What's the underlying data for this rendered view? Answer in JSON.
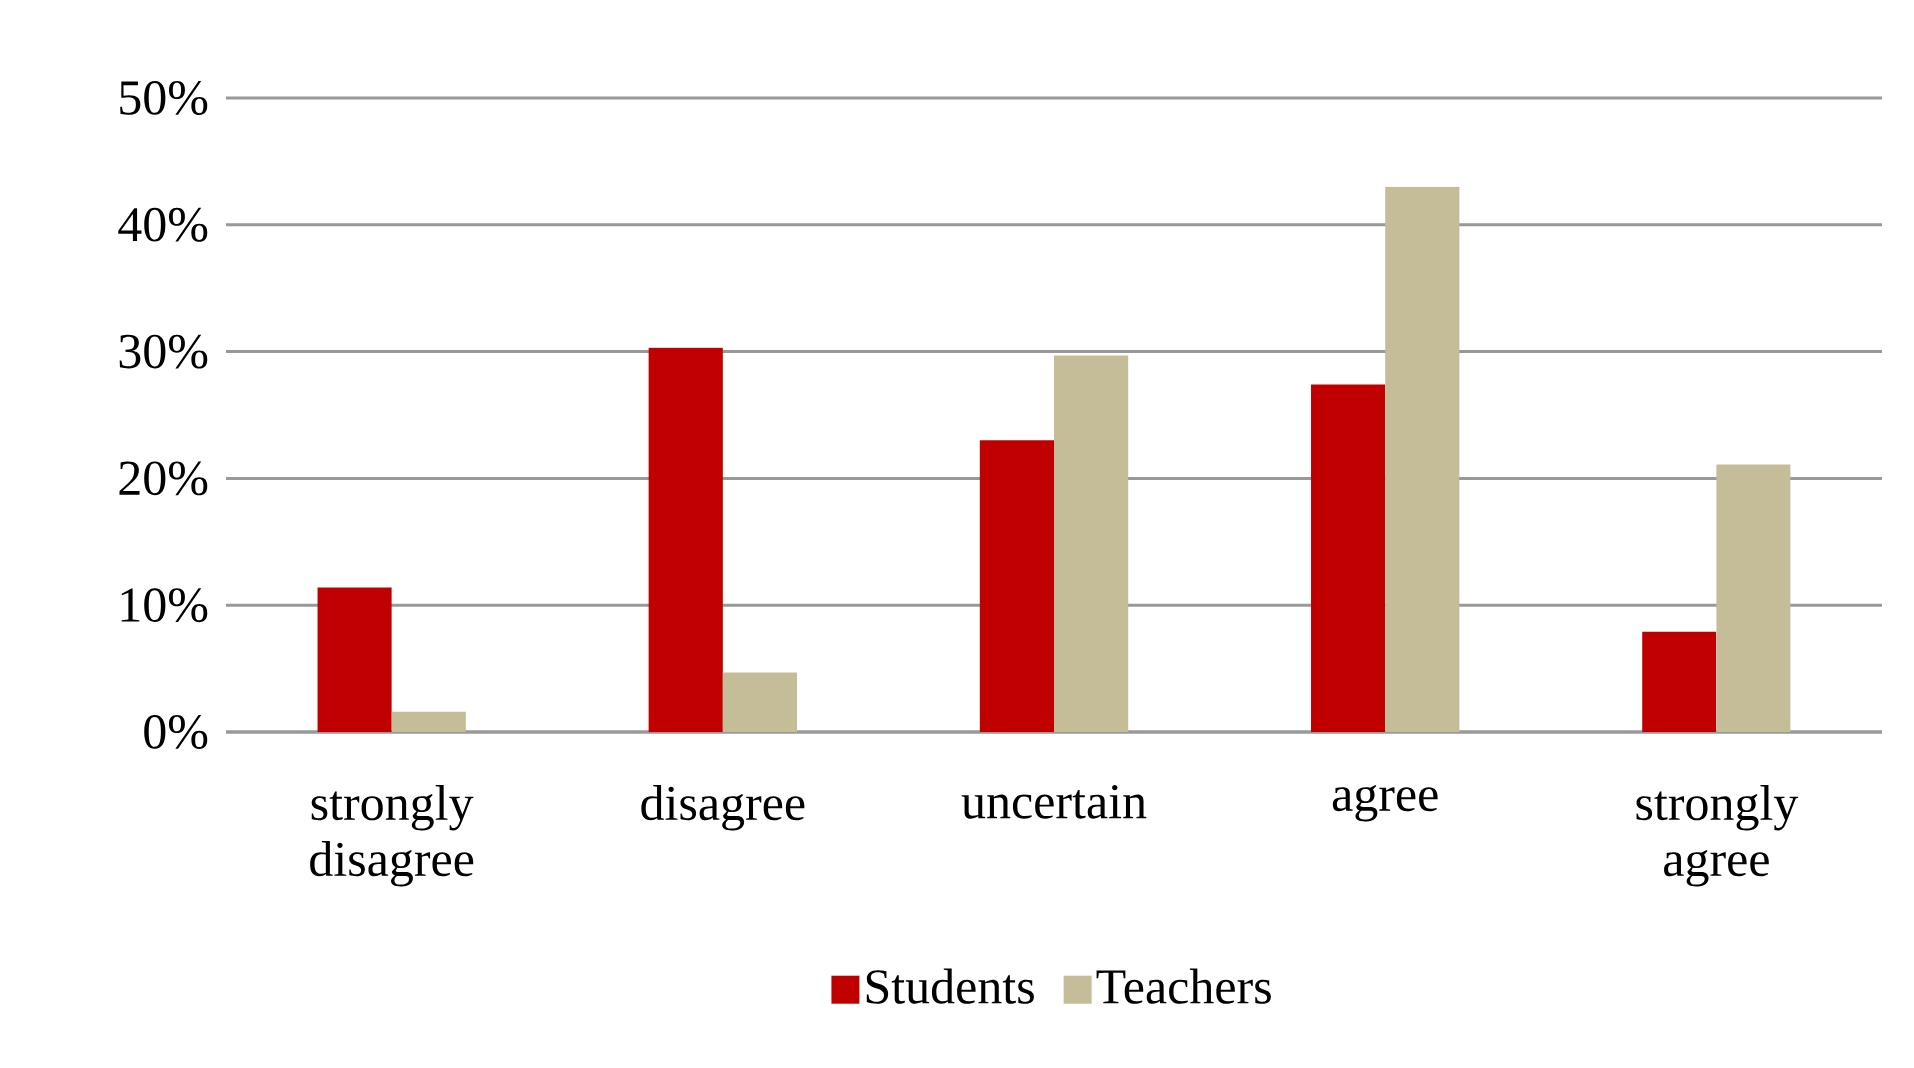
{
  "chart_data": {
    "type": "bar",
    "categories": [
      "strongly disagree",
      "disagree",
      "uncertain",
      "agree",
      "strongly agree"
    ],
    "series": [
      {
        "name": "Students",
        "color": "#c00000",
        "values": [
          11.4,
          30.3,
          23.0,
          27.4,
          7.9
        ]
      },
      {
        "name": "Teachers",
        "color": "#c4bd97",
        "values": [
          1.6,
          4.7,
          29.7,
          43.0,
          21.1
        ]
      }
    ],
    "ylim": [
      0,
      50
    ],
    "yticks": [
      {
        "value": 0,
        "label": "0%"
      },
      {
        "value": 10,
        "label": "10%"
      },
      {
        "value": 20,
        "label": "20%"
      },
      {
        "value": 30,
        "label": "30%"
      },
      {
        "value": 40,
        "label": "40%"
      },
      {
        "value": 50,
        "label": "50%"
      }
    ],
    "grid": "y",
    "legend": "bottom"
  }
}
